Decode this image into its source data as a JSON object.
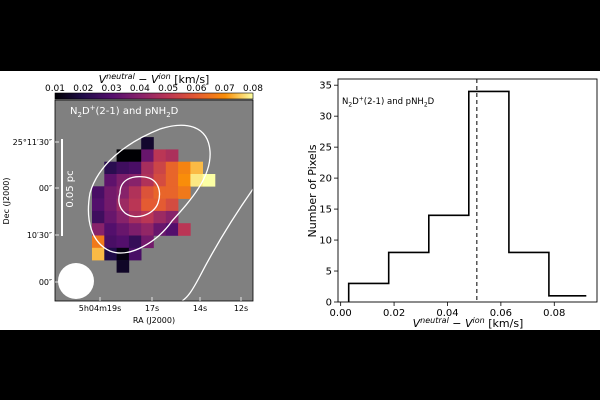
{
  "chart_data": [
    {
      "type": "heatmap",
      "colorbar": {
        "label": "V^neutral − V^ion [km/s]",
        "ticks": [
          "0.01",
          "0.02",
          "0.03",
          "0.04",
          "0.05",
          "0.06",
          "0.07",
          "0.08"
        ],
        "range": [
          0.01,
          0.08
        ],
        "colormap": "inferno",
        "placement": "top"
      },
      "annotation": "N2D+(2-1) and pNH2D",
      "scalebar_label": "0.05 pc",
      "xlabel": "RA (J2000)",
      "ylabel": "Dec (J2000)",
      "xticks": [
        "5h04m19s",
        "17s",
        "14s",
        "12s"
      ],
      "yticks": [
        "25°11′30″",
        "00″",
        "10′30″",
        "00″"
      ],
      "background": "#808080",
      "grid": [
        [
          null,
          null,
          null,
          null,
          0.016,
          null,
          null,
          null,
          null,
          null
        ],
        [
          null,
          null,
          0.01,
          0.01,
          0.034,
          0.05,
          0.047,
          null,
          null,
          null
        ],
        [
          null,
          0.022,
          0.026,
          0.028,
          0.046,
          0.054,
          0.062,
          0.068,
          0.074,
          null
        ],
        [
          null,
          0.032,
          0.038,
          0.04,
          0.048,
          0.056,
          0.062,
          0.07,
          0.078,
          0.08
        ],
        [
          0.028,
          0.036,
          0.04,
          0.048,
          0.058,
          0.062,
          0.062,
          0.066,
          null,
          null
        ],
        [
          0.03,
          0.036,
          0.044,
          0.05,
          0.06,
          0.06,
          0.056,
          null,
          null,
          null
        ],
        [
          0.026,
          0.034,
          0.04,
          0.046,
          0.05,
          0.044,
          0.04,
          null,
          null,
          null
        ],
        [
          0.04,
          0.03,
          0.034,
          0.038,
          0.042,
          0.034,
          0.03,
          0.05,
          null,
          null
        ],
        [
          0.066,
          0.028,
          0.03,
          0.024,
          0.036,
          null,
          null,
          null,
          null,
          null
        ],
        [
          0.074,
          0.02,
          0.012,
          0.028,
          null,
          null,
          null,
          null,
          null,
          null
        ],
        [
          null,
          null,
          0.015,
          null,
          null,
          null,
          null,
          null,
          null,
          null
        ]
      ]
    },
    {
      "type": "bar",
      "style": "step histogram",
      "annotation": "N2D+(2-1) and pNH2D",
      "xlabel": "V^neutral − V^ion [km/s]",
      "ylabel": "Number of Pixels",
      "bin_edges": [
        0.003,
        0.018,
        0.033,
        0.048,
        0.063,
        0.078,
        0.092
      ],
      "values": [
        3,
        8,
        14,
        34,
        8,
        1
      ],
      "xlim": [
        -0.001,
        0.096
      ],
      "ylim": [
        0,
        36
      ],
      "xticks": [
        0.0,
        0.02,
        0.04,
        0.06,
        0.08
      ],
      "yticks": [
        0,
        5,
        10,
        15,
        20,
        25,
        30,
        35
      ],
      "vline": 0.051
    }
  ]
}
